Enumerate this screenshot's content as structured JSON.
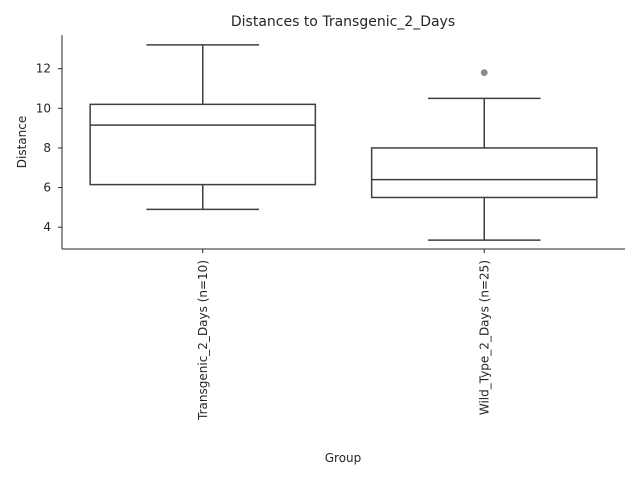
{
  "chart_data": {
    "type": "box",
    "title": "Distances to Transgenic_2_Days",
    "xlabel": "Group",
    "ylabel": "Distance",
    "ylim": [
      2.9,
      13.7
    ],
    "yticks": [
      4,
      6,
      8,
      10,
      12
    ],
    "grid": false,
    "colors": {
      "box_stroke": "#3f3f3f",
      "box_fill": "#ffffff",
      "outlier": "#8c8c8c",
      "axis": "#262626"
    },
    "groups": [
      {
        "label": "Transgenic_2_Days (n=10)",
        "whisker_low": 4.9,
        "q1": 6.15,
        "median": 9.15,
        "q3": 10.2,
        "whisker_high": 13.2,
        "outliers": []
      },
      {
        "label": "Wild_Type_2_Days (n=25)",
        "whisker_low": 3.35,
        "q1": 5.5,
        "median": 6.4,
        "q3": 8.0,
        "whisker_high": 10.5,
        "outliers": [
          11.8
        ]
      }
    ]
  }
}
